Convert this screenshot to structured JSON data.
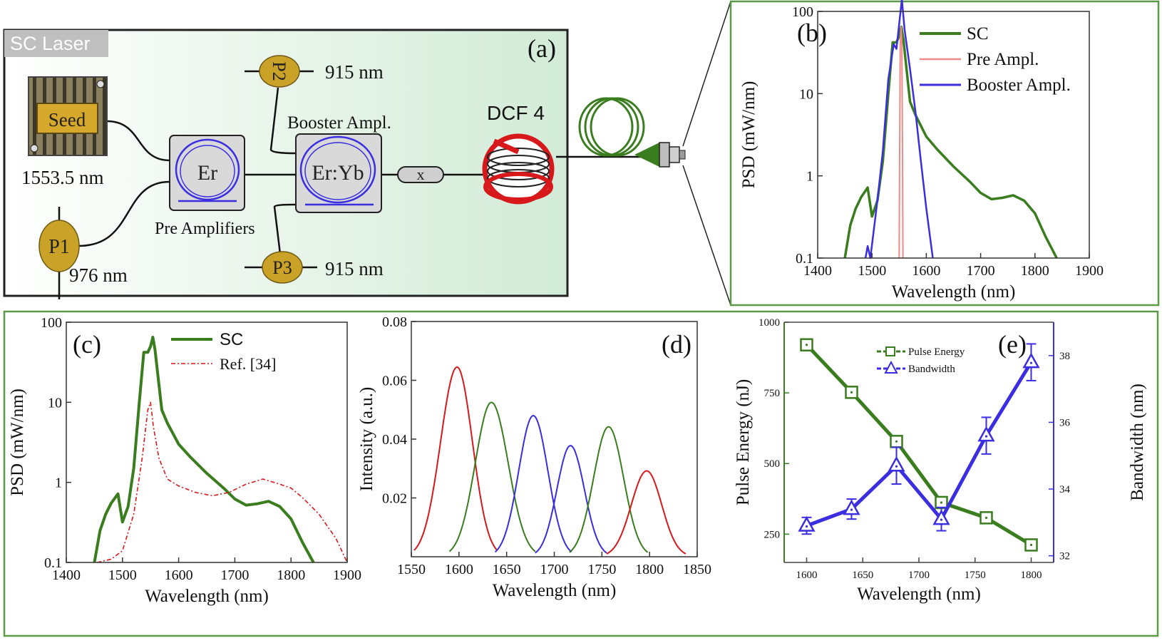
{
  "colors": {
    "green": "#3a7d1e",
    "blue": "#3a2ee0",
    "red": "#d7191c",
    "pink": "#f08a8a",
    "panel_a_bg": "#dff0e2",
    "border_green": "#5b9a46",
    "gold": "#c9a227"
  },
  "panel_a": {
    "label": "(a)",
    "tag": "SC Laser",
    "seed_label": "Seed",
    "seed_wavelength": "1553.5 nm",
    "er_label": "Er",
    "eryb_label": "Er:Yb",
    "pre_amplifiers": "Pre Amplifiers",
    "booster_label": "Booster Ampl.",
    "p1": "P1",
    "p1_wavelength": "976 nm",
    "p2": "P2",
    "p2_wavelength": "915 nm",
    "p3": "P3",
    "p3_wavelength": "915 nm",
    "isolator": "x",
    "dcf": "DCF 4"
  },
  "chart_data": [
    {
      "id": "b",
      "type": "line",
      "label": "(b)",
      "xlabel": "Wavelength (nm)",
      "ylabel": "PSD (mW/nm)",
      "xlim": [
        1400,
        1900
      ],
      "ylim": [
        0.1,
        100
      ],
      "yscale": "log",
      "xticks": [
        "1400",
        "1500",
        "1600",
        "1700",
        "1800",
        "1900"
      ],
      "yticks": [
        "0.1",
        "1",
        "10",
        "100"
      ],
      "legend_position": "top-right",
      "series": [
        {
          "name": "SC",
          "color": "#3a7d1e",
          "points": [
            [
              1450,
              0.1
            ],
            [
              1460,
              0.25
            ],
            [
              1470,
              0.4
            ],
            [
              1480,
              0.55
            ],
            [
              1492,
              0.72
            ],
            [
              1500,
              0.32
            ],
            [
              1510,
              0.5
            ],
            [
              1520,
              1.5
            ],
            [
              1530,
              10
            ],
            [
              1538,
              42
            ],
            [
              1545,
              42
            ],
            [
              1550,
              50
            ],
            [
              1554,
              65
            ],
            [
              1558,
              45
            ],
            [
              1562,
              25
            ],
            [
              1570,
              8
            ],
            [
              1580,
              5.5
            ],
            [
              1600,
              3
            ],
            [
              1620,
              2.1
            ],
            [
              1650,
              1.3
            ],
            [
              1680,
              0.85
            ],
            [
              1700,
              0.62
            ],
            [
              1720,
              0.52
            ],
            [
              1740,
              0.54
            ],
            [
              1760,
              0.58
            ],
            [
              1780,
              0.5
            ],
            [
              1800,
              0.35
            ],
            [
              1820,
              0.18
            ],
            [
              1840,
              0.1
            ]
          ]
        },
        {
          "name": "Pre Ampl.",
          "color": "#f08a8a",
          "points": [
            [
              1550,
              0.1
            ],
            [
              1551,
              3
            ],
            [
              1552,
              40
            ],
            [
              1553.5,
              65
            ],
            [
              1555,
              40
            ],
            [
              1556,
              3
            ],
            [
              1557,
              0.1
            ]
          ]
        },
        {
          "name": "Booster Ampl.",
          "color": "#3a2ee0",
          "points": [
            [
              1488,
              0.1
            ],
            [
              1492,
              0.14
            ],
            [
              1497,
              0.1
            ],
            [
              1510,
              0.5
            ],
            [
              1520,
              2
            ],
            [
              1530,
              15
            ],
            [
              1540,
              40
            ],
            [
              1545,
              35
            ],
            [
              1550,
              70
            ],
            [
              1555,
              140
            ],
            [
              1560,
              60
            ],
            [
              1570,
              20
            ],
            [
              1580,
              6
            ],
            [
              1590,
              1.5
            ],
            [
              1600,
              0.4
            ],
            [
              1612,
              0.1
            ]
          ]
        }
      ]
    },
    {
      "id": "c",
      "type": "line",
      "label": "(c)",
      "xlabel": "Wavelength (nm)",
      "ylabel": "PSD (mW/nm)",
      "xlim": [
        1400,
        1900
      ],
      "ylim": [
        0.1,
        100
      ],
      "yscale": "log",
      "xticks": [
        "1400",
        "1500",
        "1600",
        "1700",
        "1800",
        "1900"
      ],
      "yticks": [
        "0.1",
        "1",
        "10",
        "100"
      ],
      "legend_position": "top-center",
      "series": [
        {
          "name": "SC",
          "color": "#3a7d1e",
          "points": [
            [
              1450,
              0.1
            ],
            [
              1460,
              0.25
            ],
            [
              1470,
              0.4
            ],
            [
              1480,
              0.55
            ],
            [
              1492,
              0.72
            ],
            [
              1500,
              0.32
            ],
            [
              1510,
              0.5
            ],
            [
              1520,
              1.5
            ],
            [
              1530,
              10
            ],
            [
              1538,
              42
            ],
            [
              1545,
              42
            ],
            [
              1550,
              50
            ],
            [
              1554,
              65
            ],
            [
              1558,
              45
            ],
            [
              1562,
              25
            ],
            [
              1570,
              8
            ],
            [
              1580,
              5.5
            ],
            [
              1600,
              3
            ],
            [
              1620,
              2.1
            ],
            [
              1650,
              1.3
            ],
            [
              1680,
              0.85
            ],
            [
              1700,
              0.62
            ],
            [
              1720,
              0.52
            ],
            [
              1740,
              0.54
            ],
            [
              1760,
              0.58
            ],
            [
              1780,
              0.5
            ],
            [
              1800,
              0.35
            ],
            [
              1820,
              0.18
            ],
            [
              1840,
              0.1
            ]
          ]
        },
        {
          "name": "Ref. [34]",
          "color": "#d7191c",
          "dash": true,
          "points": [
            [
              1455,
              0.1
            ],
            [
              1480,
              0.11
            ],
            [
              1500,
              0.14
            ],
            [
              1520,
              0.4
            ],
            [
              1535,
              2
            ],
            [
              1545,
              8
            ],
            [
              1550,
              10
            ],
            [
              1555,
              5
            ],
            [
              1565,
              2
            ],
            [
              1580,
              1.1
            ],
            [
              1600,
              0.9
            ],
            [
              1630,
              0.75
            ],
            [
              1660,
              0.68
            ],
            [
              1690,
              0.75
            ],
            [
              1720,
              0.95
            ],
            [
              1750,
              1.1
            ],
            [
              1780,
              0.95
            ],
            [
              1800,
              0.85
            ],
            [
              1820,
              0.65
            ],
            [
              1850,
              0.4
            ],
            [
              1880,
              0.2
            ],
            [
              1900,
              0.1
            ]
          ]
        }
      ]
    },
    {
      "id": "d",
      "type": "line",
      "label": "(d)",
      "xlabel": "Wavelength (nm)",
      "ylabel": "Intensity (a.u.)",
      "xlim": [
        1550,
        1850
      ],
      "ylim": [
        0,
        0.08
      ],
      "xticks": [
        "1550",
        "1600",
        "1650",
        "1700",
        "1750",
        "1800",
        "1850"
      ],
      "yticks": [
        "0.02",
        "0.04",
        "0.06",
        "0.08"
      ],
      "peaks": [
        {
          "center": 1598,
          "height": 0.0645,
          "color": "#d7191c",
          "start": 1553,
          "end": 1640
        },
        {
          "center": 1634,
          "height": 0.0525,
          "color": "#3a7d1e",
          "start": 1590,
          "end": 1680
        },
        {
          "center": 1678,
          "height": 0.048,
          "color": "#3a2ee0",
          "start": 1638,
          "end": 1718
        },
        {
          "center": 1717,
          "height": 0.0378,
          "color": "#3a2ee0",
          "start": 1680,
          "end": 1755
        },
        {
          "center": 1757,
          "height": 0.0442,
          "color": "#3a7d1e",
          "start": 1716,
          "end": 1798
        },
        {
          "center": 1797,
          "height": 0.0292,
          "color": "#d7191c",
          "start": 1755,
          "end": 1838
        }
      ]
    },
    {
      "id": "e",
      "type": "line",
      "label": "(e)",
      "xlabel": "Wavelength (nm)",
      "ylabel": "Pulse Energy (nJ)",
      "y2label": "Bandwidth (nm)",
      "xlim": [
        1580,
        1820
      ],
      "ylim": [
        150,
        1000
      ],
      "y2lim": [
        31.8,
        39
      ],
      "xticks": [
        "1600",
        "1650",
        "1700",
        "1750",
        "1800"
      ],
      "yticks": [
        "250",
        "500",
        "750",
        "1000"
      ],
      "y2ticks": [
        "32",
        "34",
        "36",
        "38"
      ],
      "legend_position": "top-center",
      "series": [
        {
          "name": "Pulse Energy",
          "axis": "left",
          "color": "#3a7d1e",
          "marker": "square",
          "x": [
            1600,
            1640,
            1680,
            1720,
            1760,
            1800
          ],
          "y": [
            920,
            752,
            578,
            362,
            308,
            212
          ]
        },
        {
          "name": "Bandwidth",
          "axis": "right",
          "color": "#3a2ee0",
          "marker": "triangle",
          "x": [
            1600,
            1640,
            1680,
            1720,
            1760,
            1800
          ],
          "y": [
            32.9,
            33.4,
            34.7,
            33.1,
            35.6,
            37.8
          ],
          "err": [
            0.25,
            0.3,
            0.55,
            0.35,
            0.55,
            0.55
          ]
        }
      ]
    }
  ]
}
